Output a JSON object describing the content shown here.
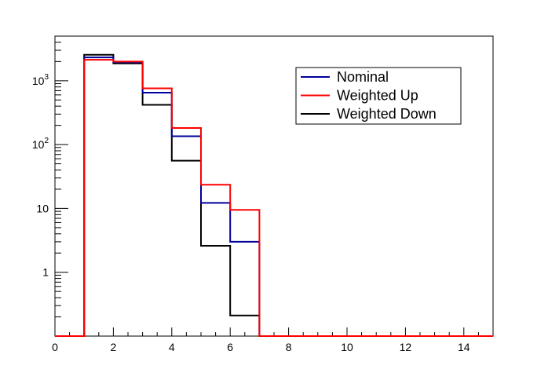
{
  "chart_data": {
    "type": "line",
    "title": "",
    "xlabel": "",
    "ylabel": "",
    "xlim": [
      0,
      15
    ],
    "ylim": [
      0.1,
      5000
    ],
    "yscale": "log",
    "grid": false,
    "legend_position": "top-right",
    "x_ticks": [
      0,
      2,
      4,
      6,
      8,
      10,
      12,
      14
    ],
    "x_tick_labels": [
      "0",
      "2",
      "4",
      "6",
      "8",
      "10",
      "12",
      "14"
    ],
    "y_ticks": [
      {
        "value": 1,
        "base": "1",
        "exp": ""
      },
      {
        "value": 10,
        "base": "10",
        "exp": ""
      },
      {
        "value": 100,
        "base": "10",
        "exp": "2"
      },
      {
        "value": 1000,
        "base": "10",
        "exp": "3"
      }
    ],
    "bin_edges": [
      0,
      1,
      2,
      3,
      4,
      5,
      6,
      7,
      8,
      9,
      10,
      11,
      12,
      13,
      14,
      15
    ],
    "series": [
      {
        "name": "Weighted Down",
        "color": "#000000",
        "values": [
          0,
          2550,
          1870,
          420,
          56,
          2.6,
          0.21,
          0,
          0,
          0,
          0,
          0,
          0,
          0,
          0
        ]
      },
      {
        "name": "Nominal",
        "color": "#000099",
        "values": [
          0,
          2320,
          1950,
          650,
          135,
          12.2,
          3.0,
          0,
          0,
          0,
          0,
          0,
          0,
          0,
          0
        ]
      },
      {
        "name": "Weighted Up",
        "color": "#ff0000",
        "values": [
          0,
          2130,
          2000,
          760,
          182,
          23.5,
          9.5,
          0,
          0,
          0,
          0,
          0,
          0,
          0,
          0
        ]
      }
    ],
    "legend": [
      {
        "label": "Nominal",
        "color": "#000099"
      },
      {
        "label": "Weighted Up",
        "color": "#ff0000"
      },
      {
        "label": "Weighted Down",
        "color": "#000000"
      }
    ]
  }
}
